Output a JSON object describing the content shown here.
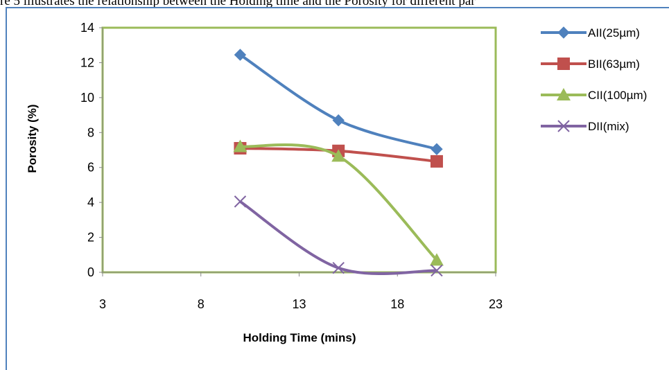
{
  "caption": "re 5 illustrates the relationship between the Holding time and the Porosity for different par",
  "chart_data": {
    "type": "line",
    "title": "",
    "xlabel": "Holding Time (mins)",
    "ylabel": "Porosity (%)",
    "xlim": [
      3,
      23
    ],
    "ylim": [
      0,
      14
    ],
    "xticks": [
      3,
      8,
      13,
      18,
      23
    ],
    "yticks": [
      0,
      2,
      4,
      6,
      8,
      10,
      12,
      14
    ],
    "grid": false,
    "legend_position": "right",
    "plot_border_color": "#9BBB59",
    "series": [
      {
        "name": "AII(25µm)",
        "color": "#4F81BD",
        "marker": "diamond",
        "x": [
          10,
          15,
          20
        ],
        "y": [
          12.45,
          8.7,
          7.05
        ]
      },
      {
        "name": "BII(63µm)",
        "color": "#C0504D",
        "marker": "square",
        "x": [
          10,
          15,
          20
        ],
        "y": [
          7.1,
          6.95,
          6.35
        ]
      },
      {
        "name": "CII(100µm)",
        "color": "#9BBB59",
        "marker": "triangle",
        "x": [
          10,
          15,
          20
        ],
        "y": [
          7.2,
          6.65,
          0.7
        ]
      },
      {
        "name": "DII(mix)",
        "color": "#8064A2",
        "marker": "x",
        "x": [
          10,
          15,
          20
        ],
        "y": [
          4.05,
          0.25,
          0.1
        ]
      }
    ]
  }
}
